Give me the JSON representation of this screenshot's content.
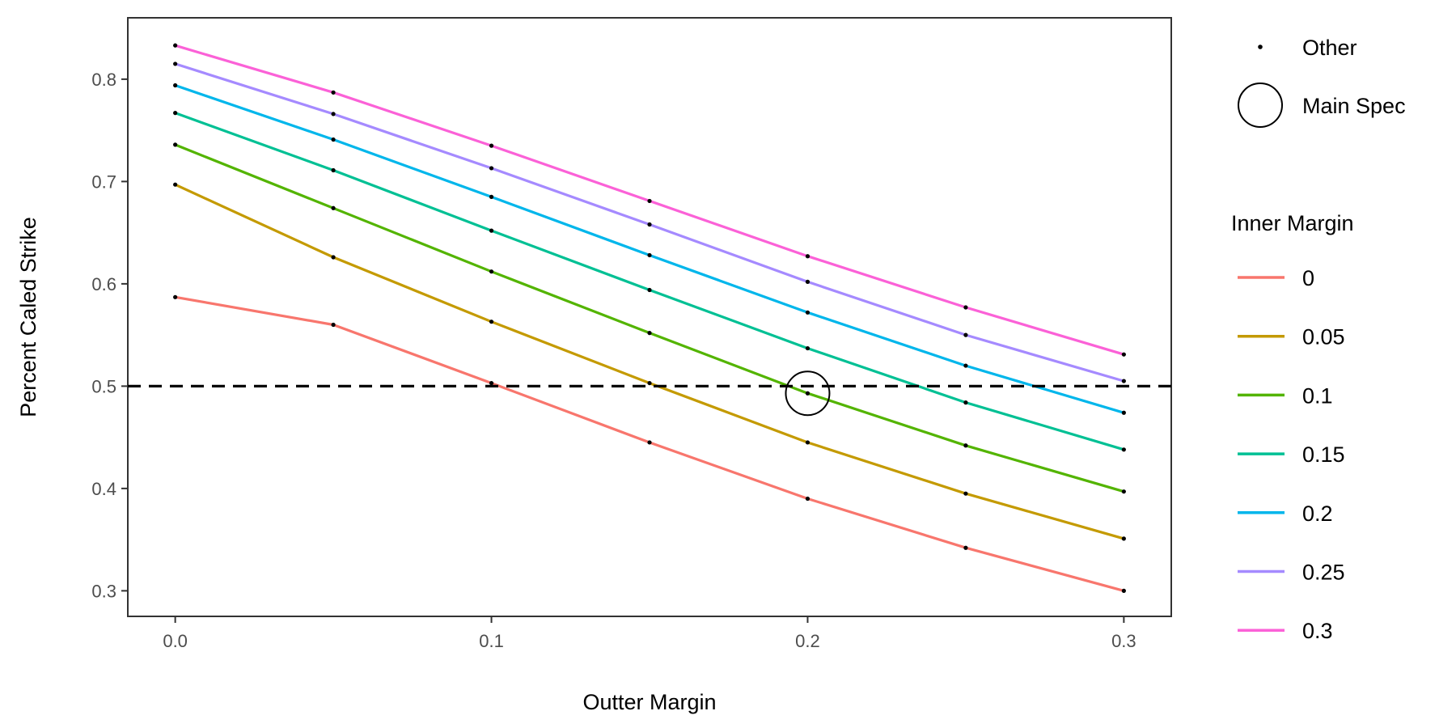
{
  "chart_data": {
    "type": "line",
    "xlabel": "Outter Margin",
    "ylabel": "Percent Caled Strike",
    "xlim": [
      -0.015,
      0.315
    ],
    "ylim": [
      0.275,
      0.86
    ],
    "x_ticks": [
      0.0,
      0.1,
      0.2,
      0.3
    ],
    "x_tick_labels": [
      "0.0",
      "0.1",
      "0.2",
      "0.3"
    ],
    "y_ticks": [
      0.3,
      0.4,
      0.5,
      0.6,
      0.7,
      0.8
    ],
    "y_tick_labels": [
      "0.3",
      "0.4",
      "0.5",
      "0.6",
      "0.7",
      "0.8"
    ],
    "grid": false,
    "reference_line": {
      "y": 0.5,
      "style": "dashed",
      "color": "#000000"
    },
    "x": [
      0.0,
      0.05,
      0.1,
      0.15,
      0.2,
      0.25,
      0.3
    ],
    "legend_title": "Inner Margin",
    "legend_position": "right",
    "series": [
      {
        "name": "0",
        "color": "#F8766D",
        "values": [
          0.587,
          0.56,
          0.503,
          0.445,
          0.39,
          0.342,
          0.3
        ]
      },
      {
        "name": "0.05",
        "color": "#C49A00",
        "values": [
          0.697,
          0.626,
          0.563,
          0.503,
          0.445,
          0.395,
          0.351
        ]
      },
      {
        "name": "0.1",
        "color": "#53B400",
        "values": [
          0.736,
          0.674,
          0.612,
          0.552,
          0.493,
          0.442,
          0.397
        ]
      },
      {
        "name": "0.15",
        "color": "#00C094",
        "values": [
          0.767,
          0.711,
          0.652,
          0.594,
          0.537,
          0.484,
          0.438
        ]
      },
      {
        "name": "0.2",
        "color": "#00B6EB",
        "values": [
          0.794,
          0.741,
          0.685,
          0.628,
          0.572,
          0.52,
          0.474
        ]
      },
      {
        "name": "0.25",
        "color": "#A58AFF",
        "values": [
          0.815,
          0.766,
          0.713,
          0.658,
          0.602,
          0.55,
          0.505
        ]
      },
      {
        "name": "0.3",
        "color": "#FB61D7",
        "values": [
          0.833,
          0.787,
          0.735,
          0.681,
          0.627,
          0.577,
          0.531
        ]
      }
    ],
    "point_legend": [
      {
        "label": "Other",
        "shape": "small-dot"
      },
      {
        "label": "Main Spec",
        "shape": "open-circle"
      }
    ],
    "main_spec_point": {
      "x": 0.2,
      "y": 0.493
    }
  }
}
